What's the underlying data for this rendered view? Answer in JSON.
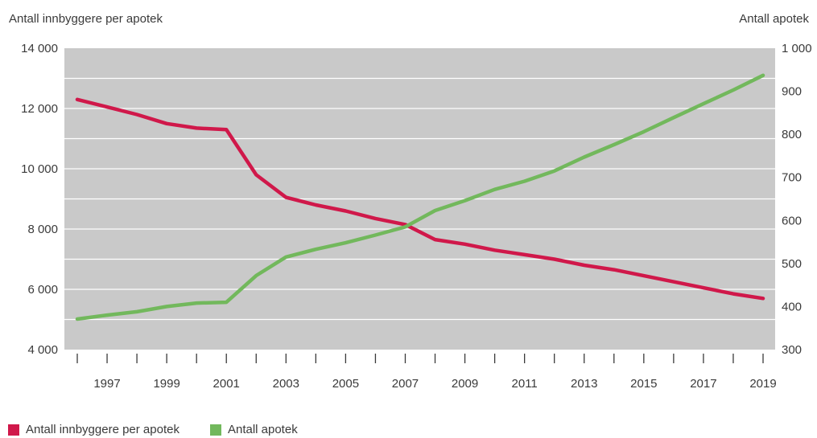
{
  "chart_data": {
    "type": "line",
    "title": "",
    "ylabel_left": "Antall innbyggere per apotek",
    "ylabel_right": "Antall apotek",
    "x": [
      1996,
      1997,
      1998,
      1999,
      2000,
      2001,
      2002,
      2003,
      2004,
      2005,
      2006,
      2007,
      2008,
      2009,
      2010,
      2011,
      2012,
      2013,
      2014,
      2015,
      2016,
      2017,
      2018,
      2019
    ],
    "x_tick_labels": [
      "1997",
      "1999",
      "2001",
      "2003",
      "2005",
      "2007",
      "2009",
      "2011",
      "2013",
      "2015",
      "2017",
      "2019"
    ],
    "y_left_lim": [
      4000,
      14000
    ],
    "y_left_ticks": [
      "4 000",
      "6 000",
      "8 000",
      "10 000",
      "12 000",
      "14 000"
    ],
    "y_right_lim": [
      300,
      1000
    ],
    "y_right_ticks": [
      "300",
      "400",
      "500",
      "600",
      "700",
      "800",
      "900",
      "1 000"
    ],
    "grid": true,
    "legend_position": "bottom-left",
    "series": [
      {
        "name": "Antall innbyggere per apotek",
        "axis": "left",
        "color": "#d0184a",
        "values": [
          12300,
          12050,
          11800,
          11500,
          11350,
          11300,
          9800,
          9050,
          8800,
          8600,
          8350,
          8150,
          7650,
          7500,
          7300,
          7150,
          7000,
          6800,
          6650,
          6450,
          6250,
          6050,
          5850,
          5700
        ]
      },
      {
        "name": "Antall apotek",
        "axis": "right",
        "color": "#72b85c",
        "values": [
          371,
          380,
          388,
          400,
          408,
          410,
          472,
          515,
          533,
          548,
          566,
          585,
          623,
          646,
          672,
          691,
          715,
          747,
          776,
          806,
          839,
          871,
          903,
          937
        ]
      }
    ],
    "plot_background": "#c9c9c9",
    "gridline_color": "#ffffff"
  }
}
